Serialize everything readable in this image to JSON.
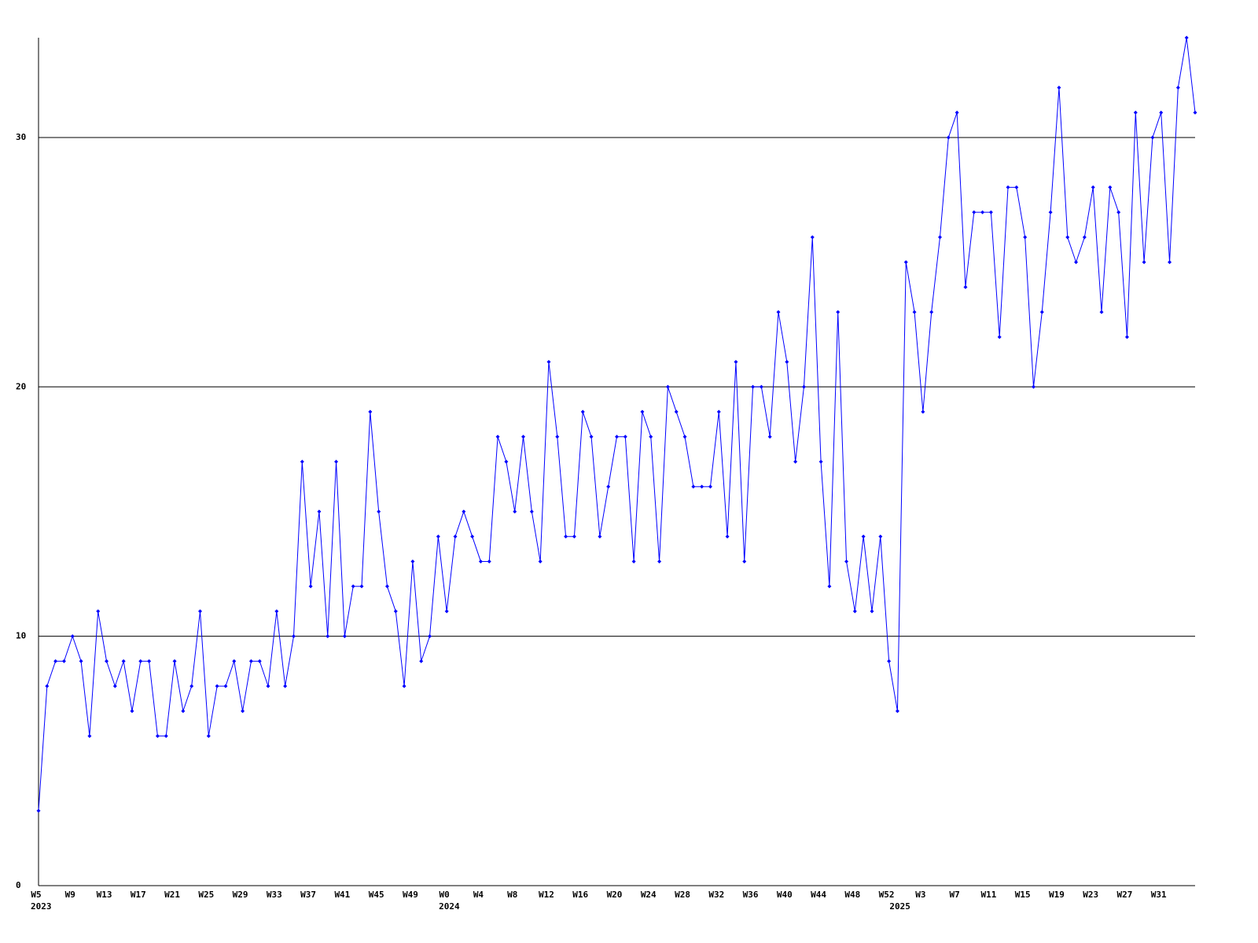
{
  "chart_data": {
    "type": "line",
    "categories": [
      "W5",
      null,
      null,
      null,
      "W9",
      null,
      null,
      null,
      "W13",
      null,
      null,
      null,
      "W17",
      null,
      null,
      null,
      "W21",
      null,
      null,
      null,
      "W25",
      null,
      null,
      null,
      "W29",
      null,
      null,
      null,
      "W33",
      null,
      null,
      null,
      "W37",
      null,
      null,
      null,
      "W41",
      null,
      null,
      null,
      "W45",
      null,
      null,
      null,
      "W49",
      null,
      null,
      null,
      "W0",
      null,
      null,
      null,
      "W4",
      null,
      null,
      null,
      "W8",
      null,
      null,
      null,
      "W12",
      null,
      null,
      null,
      "W16",
      null,
      null,
      null,
      "W20",
      null,
      null,
      null,
      "W24",
      null,
      null,
      null,
      "W28",
      null,
      null,
      null,
      "W32",
      null,
      null,
      null,
      "W36",
      null,
      null,
      null,
      "W40",
      null,
      null,
      null,
      "W44",
      null,
      null,
      null,
      "W48",
      null,
      null,
      null,
      "W52",
      null,
      null,
      null,
      "W3",
      null,
      null,
      null,
      "W7",
      null,
      null,
      null,
      "W11",
      null,
      null,
      null,
      "W15",
      null,
      null,
      null,
      "W19",
      null,
      null,
      null,
      "W23",
      null,
      null,
      null,
      "W27",
      null,
      null,
      null,
      "W31",
      null,
      null,
      null,
      null
    ],
    "years": [
      {
        "label": "2023",
        "at": 0
      },
      {
        "label": "2024",
        "at": 48
      },
      {
        "label": "2025",
        "at": 101
      }
    ],
    "series": [
      {
        "color": "#0000ff",
        "values": [
          3,
          8,
          9,
          9,
          10,
          9,
          6,
          11,
          9,
          8,
          9,
          7,
          9,
          9,
          6,
          6,
          9,
          7,
          8,
          11,
          6,
          8,
          8,
          9,
          7,
          9,
          9,
          8,
          11,
          8,
          10,
          17,
          12,
          15,
          10,
          17,
          10,
          12,
          12,
          19,
          15,
          12,
          11,
          8,
          13,
          9,
          10,
          14,
          11,
          14,
          15,
          14,
          13,
          13,
          18,
          17,
          15,
          18,
          15,
          13,
          21,
          18,
          14,
          14,
          19,
          18,
          14,
          16,
          18,
          18,
          13,
          19,
          18,
          13,
          20,
          19,
          18,
          16,
          16,
          16,
          19,
          14,
          21,
          13,
          20,
          20,
          18,
          23,
          21,
          17,
          20,
          26,
          17,
          12,
          23,
          13,
          11,
          14,
          11,
          14,
          9,
          7,
          25,
          23,
          19,
          23,
          26,
          30,
          31,
          24,
          27,
          27,
          27,
          22,
          28,
          28,
          26,
          20,
          23,
          27,
          32,
          26,
          25,
          26,
          28,
          23,
          28,
          27,
          22,
          31,
          25,
          30,
          31,
          25,
          32,
          34,
          31
        ]
      }
    ],
    "ylim": [
      0,
      34
    ],
    "yticks": [
      0,
      10,
      20,
      30
    ],
    "grid": true
  }
}
